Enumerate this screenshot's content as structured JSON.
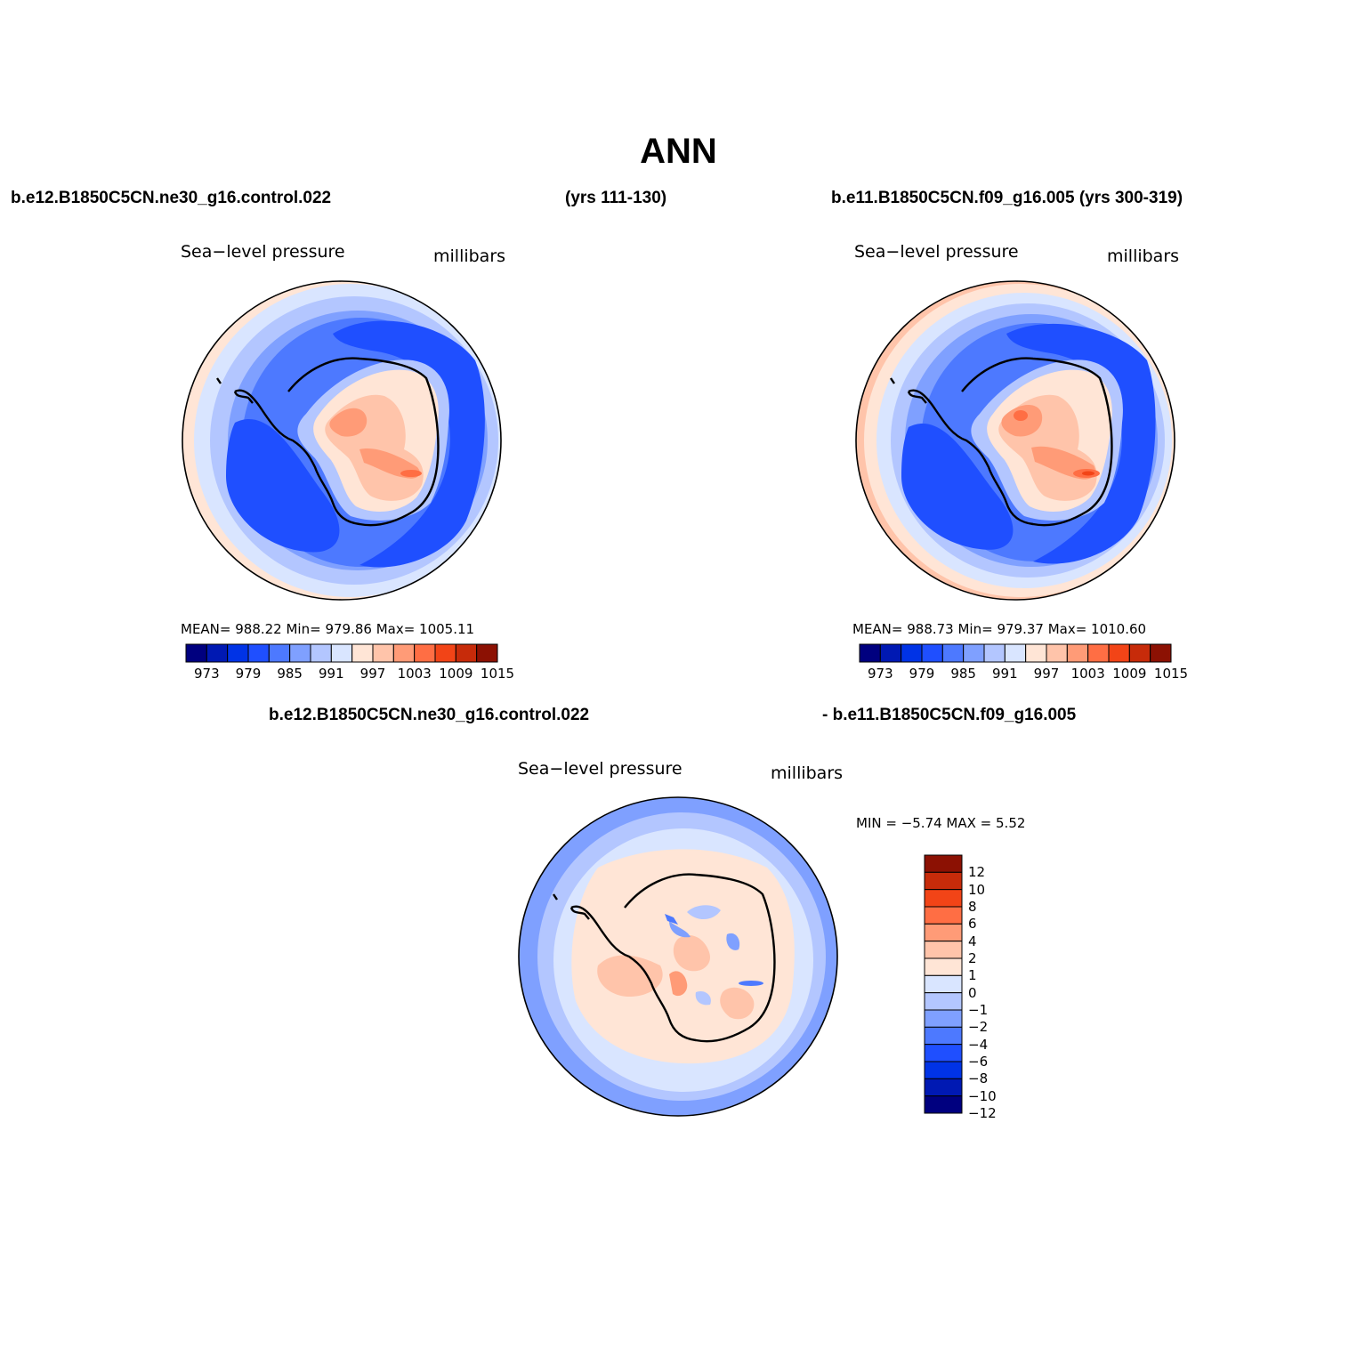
{
  "figure_title": "ANN",
  "header": {
    "left_case": "b.e12.B1850C5CN.ne30_g16.control.022",
    "left_years": "(yrs 111-130)",
    "right_case": "b.e11.B1850C5CN.f09_g16.005 (yrs 300-319)",
    "diff_case_a": "b.e12.B1850C5CN.ne30_g16.control.022",
    "diff_case_b": "- b.e11.B1850C5CN.f09_g16.005"
  },
  "panels": [
    {
      "id": "left",
      "variable": "Sea−level pressure",
      "units": "millibars",
      "stats_text": "MEAN=  988.22   Min=  979.86   Max=  1005.11",
      "colorbar_labels": [
        "973",
        "979",
        "985",
        "991",
        "997",
        "1003",
        "1009",
        "1015"
      ]
    },
    {
      "id": "right",
      "variable": "Sea−level pressure",
      "units": "millibars",
      "stats_text": "MEAN=  988.73   Min=  979.37   Max=  1010.60",
      "colorbar_labels": [
        "973",
        "979",
        "985",
        "991",
        "997",
        "1003",
        "1009",
        "1015"
      ]
    },
    {
      "id": "diff",
      "variable": "Sea−level pressure",
      "units": "millibars",
      "stats_text": "MIN =   −5.74  MAX =    5.52",
      "colorbar_labels": [
        "12",
        "10",
        "8",
        "6",
        "4",
        "2",
        "1",
        "0",
        "−1",
        "−2",
        "−4",
        "−6",
        "−8",
        "−10",
        "−12"
      ]
    }
  ],
  "colors": {
    "abs_scale": [
      "#00007f",
      "#0019b3",
      "#0033e6",
      "#1f4fff",
      "#4d79ff",
      "#7fa0ff",
      "#b3c6ff",
      "#d9e5ff",
      "#ffe5d6",
      "#ffc4aa",
      "#ff9b77",
      "#ff6e44",
      "#f24417",
      "#c72b0a",
      "#8c1103"
    ],
    "diff_scale": [
      "#00007f",
      "#0019b3",
      "#0033e6",
      "#1f4fff",
      "#4d79ff",
      "#7fa0ff",
      "#b3c6ff",
      "#d9e5ff",
      "#ffe5d6",
      "#ffc4aa",
      "#ff9b77",
      "#ff6e44",
      "#f24417",
      "#c72b0a",
      "#8c1103"
    ]
  }
}
